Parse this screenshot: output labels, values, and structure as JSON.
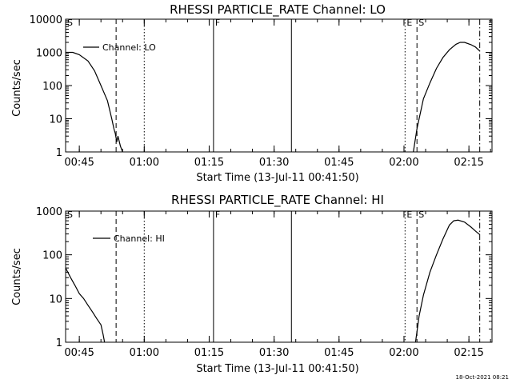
{
  "footer": {
    "timestamp": "18-Oct-2021 08:21"
  },
  "chart_data": [
    {
      "type": "line",
      "title": "RHESSI PARTICLE_RATE Channel: LO",
      "xlabel": "Start Time (13-Jul-11 00:41:50)",
      "ylabel": "Counts/sec",
      "yscale": "log",
      "ylim": [
        1,
        10000
      ],
      "xlim": [
        "00:41:50",
        "02:20:20"
      ],
      "xticks": [
        "00:45",
        "01:00",
        "01:15",
        "01:30",
        "01:45",
        "02:00",
        "02:15"
      ],
      "yticks": [
        "1",
        "10",
        "100",
        "1000",
        "10000"
      ],
      "legend": {
        "position": "top-left",
        "entries": [
          "Channel: LO"
        ]
      },
      "series": [
        {
          "name": "Channel: LO",
          "segments": [
            [
              [
                "00:41:50",
                1000
              ],
              [
                "00:43:30",
                1000
              ],
              [
                "00:45:00",
                850
              ],
              [
                "00:47:00",
                550
              ],
              [
                "00:48:30",
                280
              ],
              [
                "00:50:00",
                100
              ],
              [
                "00:51:30",
                35
              ],
              [
                "00:52:30",
                10
              ],
              [
                "00:53:00",
                5
              ],
              [
                "00:53:20",
                3.5
              ],
              [
                "00:53:40",
                2
              ],
              [
                "00:53:55",
                3
              ],
              [
                "00:54:30",
                1.5
              ],
              [
                "00:55:00",
                1
              ]
            ],
            [
              [
                "02:02:10",
                1
              ],
              [
                "02:03:00",
                5
              ],
              [
                "02:04:30",
                40
              ],
              [
                "02:06:00",
                120
              ],
              [
                "02:07:30",
                330
              ],
              [
                "02:09:00",
                700
              ],
              [
                "02:10:30",
                1200
              ],
              [
                "02:12:00",
                1750
              ],
              [
                "02:13:00",
                2000
              ],
              [
                "02:14:00",
                2000
              ],
              [
                "02:15:30",
                1700
              ],
              [
                "02:16:30",
                1450
              ],
              [
                "02:17:30",
                1100
              ]
            ]
          ]
        }
      ],
      "markers": [
        {
          "label": "S",
          "time": "00:41:50",
          "style": "solid",
          "line": false
        },
        {
          "label": "",
          "time": "00:53:30",
          "style": "dashed",
          "line": true
        },
        {
          "label": "",
          "time": "01:00:00",
          "style": "dotted",
          "line": true
        },
        {
          "label": "F",
          "time": "01:16:00",
          "style": "solid",
          "line": true
        },
        {
          "label": "",
          "time": "01:34:00",
          "style": "solid",
          "line": true
        },
        {
          "label": "E",
          "time": "02:00:15",
          "style": "dotted",
          "line": true
        },
        {
          "label": "S",
          "time": "02:03:00",
          "style": "dashed",
          "line": true
        },
        {
          "label": "",
          "time": "02:17:30",
          "style": "dashdot",
          "line": true
        }
      ]
    },
    {
      "type": "line",
      "title": "RHESSI PARTICLE_RATE Channel: HI",
      "xlabel": "Start Time (13-Jul-11 00:41:50)",
      "ylabel": "Counts/sec",
      "yscale": "log",
      "ylim": [
        1,
        1000
      ],
      "xlim": [
        "00:41:50",
        "02:20:20"
      ],
      "xticks": [
        "00:45",
        "01:00",
        "01:15",
        "01:30",
        "01:45",
        "02:00",
        "02:15"
      ],
      "yticks": [
        "1",
        "10",
        "100",
        "1000"
      ],
      "legend": {
        "position": "top-left",
        "entries": [
          "Channel: HI"
        ]
      },
      "series": [
        {
          "name": "Channel: HI",
          "segments": [
            [
              [
                "00:41:50",
                50
              ],
              [
                "00:43:00",
                30
              ],
              [
                "00:44:00",
                20
              ],
              [
                "00:45:00",
                13
              ],
              [
                "00:46:00",
                10
              ],
              [
                "00:47:00",
                7
              ],
              [
                "00:48:00",
                5
              ],
              [
                "00:49:00",
                3.5
              ],
              [
                "00:50:00",
                2.5
              ],
              [
                "00:50:30",
                1.5
              ],
              [
                "00:50:50",
                1
              ]
            ],
            [
              [
                "02:02:40",
                1
              ],
              [
                "02:03:30",
                4
              ],
              [
                "02:04:30",
                12
              ],
              [
                "02:06:00",
                40
              ],
              [
                "02:07:30",
                100
              ],
              [
                "02:09:00",
                230
              ],
              [
                "02:10:30",
                480
              ],
              [
                "02:11:30",
                600
              ],
              [
                "02:12:30",
                620
              ],
              [
                "02:14:00",
                560
              ],
              [
                "02:15:30",
                430
              ],
              [
                "02:16:30",
                350
              ],
              [
                "02:17:30",
                290
              ]
            ]
          ]
        }
      ],
      "markers": [
        {
          "label": "S",
          "time": "00:41:50",
          "style": "solid",
          "line": false
        },
        {
          "label": "",
          "time": "00:53:30",
          "style": "dashed",
          "line": true
        },
        {
          "label": "",
          "time": "01:00:00",
          "style": "dotted",
          "line": true
        },
        {
          "label": "F",
          "time": "01:16:00",
          "style": "solid",
          "line": true
        },
        {
          "label": "",
          "time": "01:34:00",
          "style": "solid",
          "line": true
        },
        {
          "label": "E",
          "time": "02:00:15",
          "style": "dotted",
          "line": true
        },
        {
          "label": "S",
          "time": "02:03:00",
          "style": "dashed",
          "line": true
        },
        {
          "label": "",
          "time": "02:17:30",
          "style": "dashdot",
          "line": true
        }
      ]
    }
  ]
}
